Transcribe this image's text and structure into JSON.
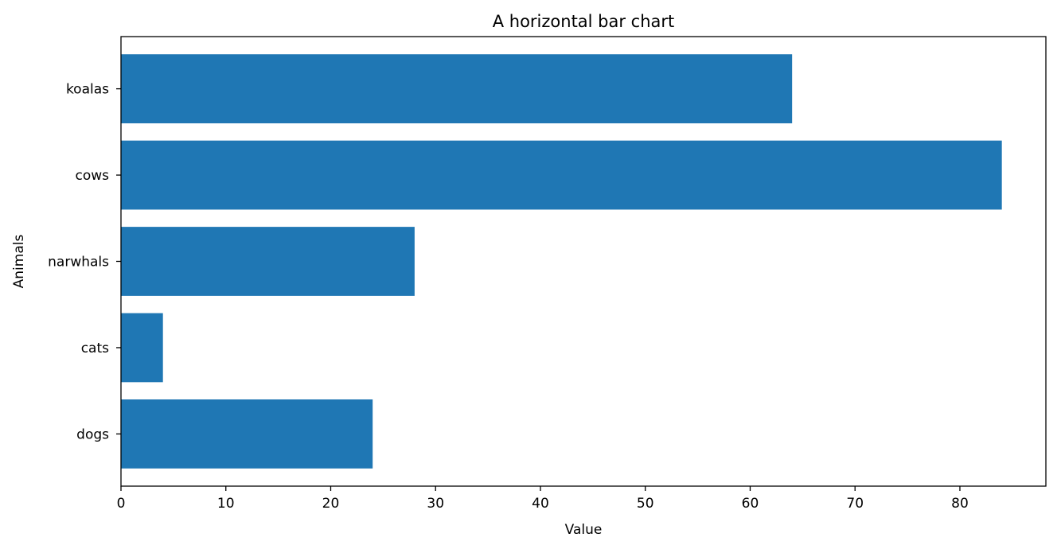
{
  "chart_data": {
    "type": "bar",
    "orientation": "horizontal",
    "title": "A horizontal bar chart",
    "xlabel": "Value",
    "ylabel": "Animals",
    "categories": [
      "dogs",
      "cats",
      "narwhals",
      "cows",
      "koalas"
    ],
    "values": [
      24,
      4,
      28,
      84,
      64
    ],
    "xlim": [
      0,
      88.2
    ],
    "xticks": [
      0,
      10,
      20,
      30,
      40,
      50,
      60,
      70,
      80
    ],
    "bar_color": "#1f77b4",
    "grid": false,
    "legend": "none"
  }
}
